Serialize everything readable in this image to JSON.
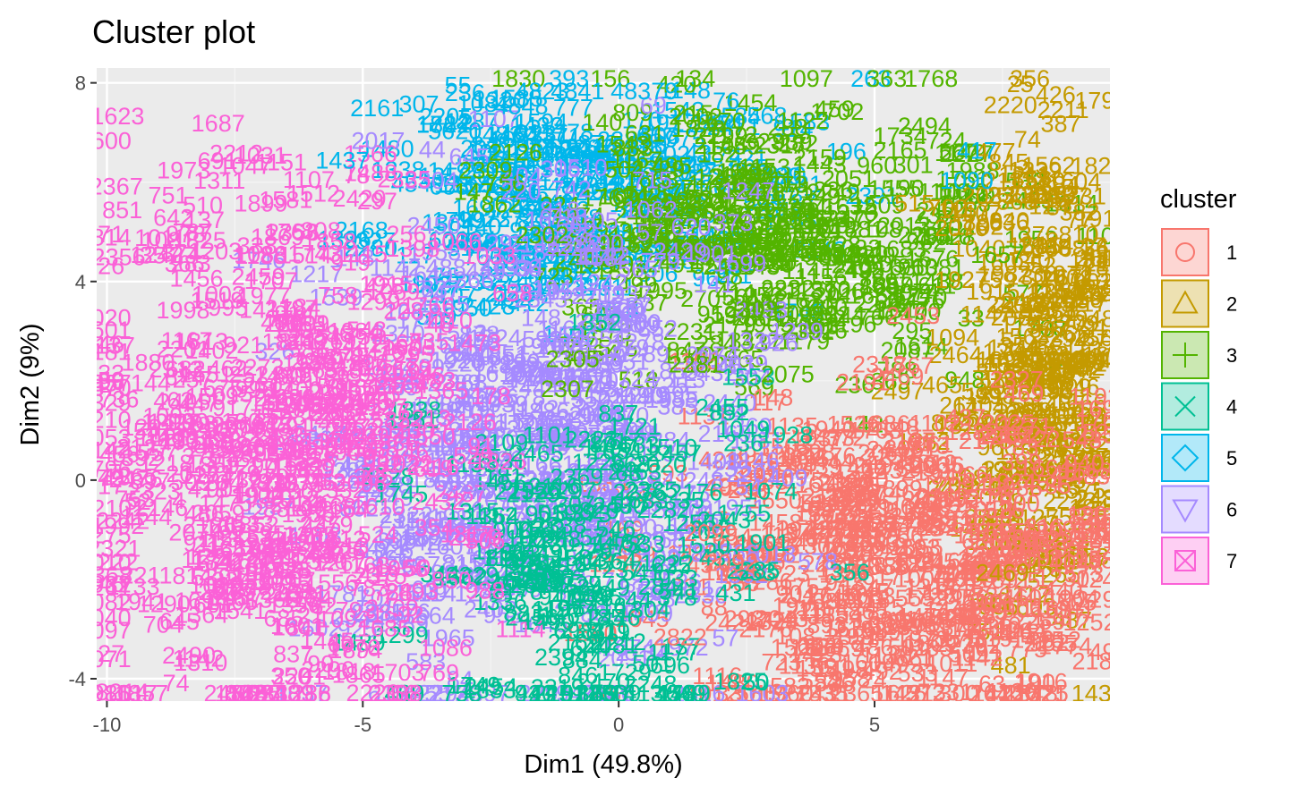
{
  "chart_data": {
    "type": "scatter",
    "title": "Cluster plot",
    "xlabel": "Dim1 (49.8%)",
    "ylabel": "Dim2 (9%)",
    "xlim": [
      -10.2,
      9.6
    ],
    "ylim": [
      -4.45,
      8.3
    ],
    "x_ticks": [
      -10,
      -5,
      0,
      5
    ],
    "x_tick_labels": [
      "-10",
      "-5",
      "0",
      "5"
    ],
    "y_ticks": [
      -4,
      0,
      4,
      8
    ],
    "y_tick_labels": [
      "-4",
      "0",
      "4",
      "8"
    ],
    "grid": true,
    "legend_title": "cluster",
    "legend_position": "right",
    "series": [
      {
        "name": "1",
        "color": "#F8766D",
        "center": [
          5.6,
          -1.6
        ],
        "spread": [
          2.2,
          1.6
        ]
      },
      {
        "name": "2",
        "color": "#C49A00",
        "center": [
          8.1,
          2.2
        ],
        "spread": [
          0.9,
          2.5
        ]
      },
      {
        "name": "3",
        "color": "#53B400",
        "center": [
          3.2,
          4.8
        ],
        "spread": [
          2.4,
          1.3
        ]
      },
      {
        "name": "4",
        "color": "#00C094",
        "center": [
          -0.4,
          -1.8
        ],
        "spread": [
          1.6,
          1.8
        ]
      },
      {
        "name": "5",
        "color": "#00B6EB",
        "center": [
          -0.7,
          5.6
        ],
        "spread": [
          2.0,
          1.0
        ]
      },
      {
        "name": "6",
        "color": "#A58AFF",
        "center": [
          -1.5,
          0.8
        ],
        "spread": [
          2.2,
          2.5
        ]
      },
      {
        "name": "7",
        "color": "#FB61D7",
        "center": [
          -6.8,
          0.7
        ],
        "spread": [
          2.0,
          2.7
        ]
      }
    ],
    "point_labels": [
      {
        "cluster": "5",
        "text": "4823",
        "x": -1.5,
        "y": 7.8
      },
      {
        "cluster": "5",
        "text": "4841",
        "x": -0.8,
        "y": 7.8
      },
      {
        "cluster": "5",
        "text": "48379",
        "x": 0.5,
        "y": 7.8
      },
      {
        "cluster": "5",
        "text": "76",
        "x": 2.1,
        "y": 7.6
      },
      {
        "cluster": "5",
        "text": "4848",
        "x": -1.9,
        "y": 7.5
      },
      {
        "cluster": "5",
        "text": "568",
        "x": 2.9,
        "y": 7.3
      },
      {
        "cluster": "5",
        "text": "5620",
        "x": -3.2,
        "y": 7.0
      },
      {
        "cluster": "5",
        "text": "1432",
        "x": -1.6,
        "y": 7.1
      },
      {
        "cluster": "3",
        "text": "1122",
        "x": 3.6,
        "y": 7.2
      },
      {
        "cluster": "3",
        "text": "1734",
        "x": 5.5,
        "y": 6.9
      },
      {
        "cluster": "3",
        "text": "724",
        "x": 6.4,
        "y": 6.8
      },
      {
        "cluster": "5",
        "text": "417",
        "x": 7.0,
        "y": 6.6
      },
      {
        "cluster": "5",
        "text": "2309",
        "x": -2.5,
        "y": 6.2
      },
      {
        "cluster": "3",
        "text": "2309",
        "x": -2.6,
        "y": 6.2
      },
      {
        "cluster": "3",
        "text": "2299",
        "x": 2.0,
        "y": 6.9
      },
      {
        "cluster": "7",
        "text": "1031",
        "x": -7.0,
        "y": 6.5
      },
      {
        "cluster": "7",
        "text": "1973",
        "x": -8.5,
        "y": 6.2
      },
      {
        "cluster": "7",
        "text": "1311",
        "x": -7.8,
        "y": 6.0
      },
      {
        "cluster": "7",
        "text": "851",
        "x": -9.7,
        "y": 5.4
      },
      {
        "cluster": "7",
        "text": "751",
        "x": -8.8,
        "y": 5.7
      },
      {
        "cluster": "5",
        "text": "1437",
        "x": -5.4,
        "y": 6.4
      },
      {
        "cluster": "6",
        "text": "2017",
        "x": -4.7,
        "y": 6.8
      },
      {
        "cluster": "2",
        "text": "1562",
        "x": 8.4,
        "y": 6.3
      },
      {
        "cluster": "2",
        "text": "1570",
        "x": 8.2,
        "y": 6.0
      },
      {
        "cluster": "5",
        "text": "1090",
        "x": 6.8,
        "y": 6.0
      },
      {
        "cluster": "3",
        "text": "2302",
        "x": -1.5,
        "y": 4.9
      },
      {
        "cluster": "3",
        "text": "1657",
        "x": 7.4,
        "y": 4.5
      },
      {
        "cluster": "3",
        "text": "2303",
        "x": 2.6,
        "y": 3.4
      },
      {
        "cluster": "3",
        "text": "2305",
        "x": -0.9,
        "y": 2.4
      },
      {
        "cluster": "3",
        "text": "2307",
        "x": -1.0,
        "y": 1.8
      },
      {
        "cluster": "3",
        "text": "2075",
        "x": 3.3,
        "y": 2.1
      },
      {
        "cluster": "3",
        "text": "2281",
        "x": 1.5,
        "y": 2.3
      },
      {
        "cluster": "4",
        "text": "2457",
        "x": 1.1,
        "y": 0.5
      },
      {
        "cluster": "4",
        "text": "2465",
        "x": -1.6,
        "y": 0.5
      },
      {
        "cluster": "6",
        "text": "6525",
        "x": -3.1,
        "y": -0.1
      },
      {
        "cluster": "4",
        "text": "519",
        "x": -1.2,
        "y": -0.7
      },
      {
        "cluster": "1",
        "text": "2099",
        "x": 1.8,
        "y": -1.1
      },
      {
        "cluster": "1",
        "text": "2092",
        "x": 2.2,
        "y": -1.7
      },
      {
        "cluster": "4",
        "text": "2452",
        "x": -1.2,
        "y": -1.8
      },
      {
        "cluster": "4",
        "text": "2449",
        "x": -0.3,
        "y": -2.2
      },
      {
        "cluster": "4",
        "text": "2456",
        "x": -1.7,
        "y": -2.8
      },
      {
        "cluster": "4",
        "text": "2446",
        "x": -0.1,
        "y": -2.8
      },
      {
        "cluster": "6",
        "text": "2335",
        "x": -4.7,
        "y": -2.7
      },
      {
        "cluster": "4",
        "text": "2454",
        "x": -2.5,
        "y": -4.2
      },
      {
        "cluster": "4",
        "text": "2470",
        "x": -0.3,
        "y": -4.1
      },
      {
        "cluster": "2",
        "text": "2469",
        "x": 7.5,
        "y": -1.9
      },
      {
        "cluster": "1",
        "text": "2822",
        "x": 1.2,
        "y": -3.2
      },
      {
        "cluster": "7",
        "text": "8214",
        "x": -9.7,
        "y": -4.3
      }
    ]
  },
  "legend": {
    "title": "cluster",
    "items": [
      {
        "label": "1",
        "color": "#F8766D",
        "shape": "circle"
      },
      {
        "label": "2",
        "color": "#C49A00",
        "shape": "triangle"
      },
      {
        "label": "3",
        "color": "#53B400",
        "shape": "plus"
      },
      {
        "label": "4",
        "color": "#00C094",
        "shape": "cross"
      },
      {
        "label": "5",
        "color": "#00B6EB",
        "shape": "diamond"
      },
      {
        "label": "6",
        "color": "#A58AFF",
        "shape": "triangle-down"
      },
      {
        "label": "7",
        "color": "#FB61D7",
        "shape": "square-cross"
      }
    ]
  }
}
